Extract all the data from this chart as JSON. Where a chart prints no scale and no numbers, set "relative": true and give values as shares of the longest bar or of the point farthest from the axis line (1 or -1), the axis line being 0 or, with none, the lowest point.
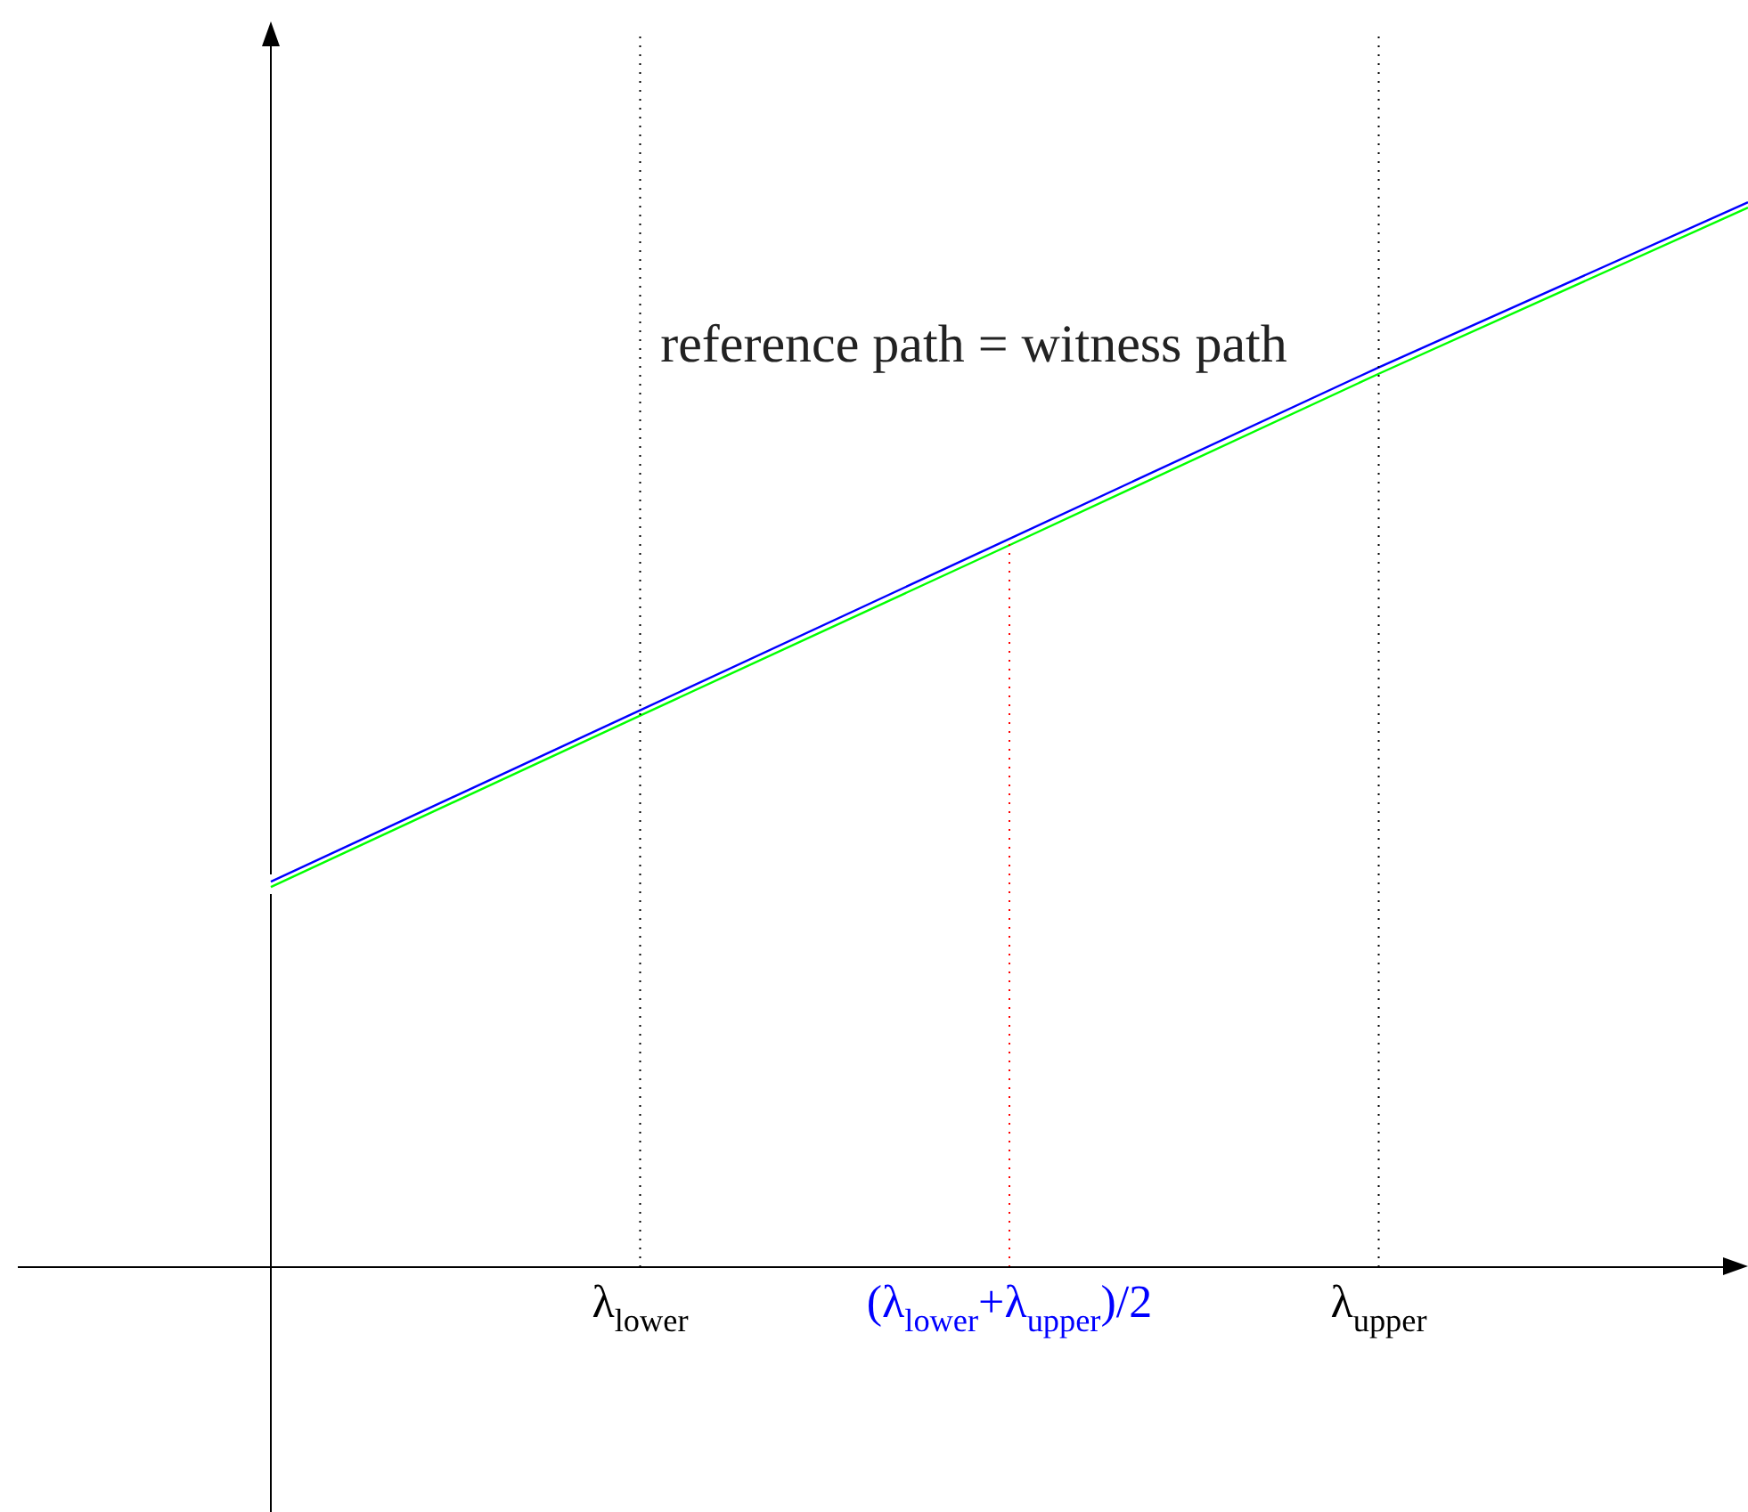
{
  "chart_data": {
    "type": "line",
    "relative": true,
    "categories": [
      null,
      "λ$_{lower}$",
      "(λ$_{lower}$+λ$_{upper}$)/2",
      "λ$_{upper}$",
      null
    ],
    "series": [
      {
        "color": "#0000ff",
        "values": [
          0.362,
          0.523,
          0.684,
          0.845,
          1
        ]
      },
      {
        "color": "#00ff00",
        "values": [
          0.357,
          0.518,
          0.678,
          0.839,
          0.995
        ]
      }
    ],
    "ref_lines": [
      {
        "axis": "x",
        "value": "λ$_{lower}$",
        "color": "#000000",
        "line_style": "dotted"
      },
      {
        "axis": "x",
        "value": "(λ$_{lower}$+λ$_{upper}$)/2",
        "color": "#ff0000",
        "line_style": "dotted"
      },
      {
        "axis": "x",
        "value": "λ$_{upper}$",
        "color": "#000000",
        "line_style": "dotted"
      }
    ],
    "annotations": [
      "reference path = witness path"
    ],
    "tick_labels": "x",
    "legend": false,
    "marker": "none",
    "line_style": "solid"
  }
}
